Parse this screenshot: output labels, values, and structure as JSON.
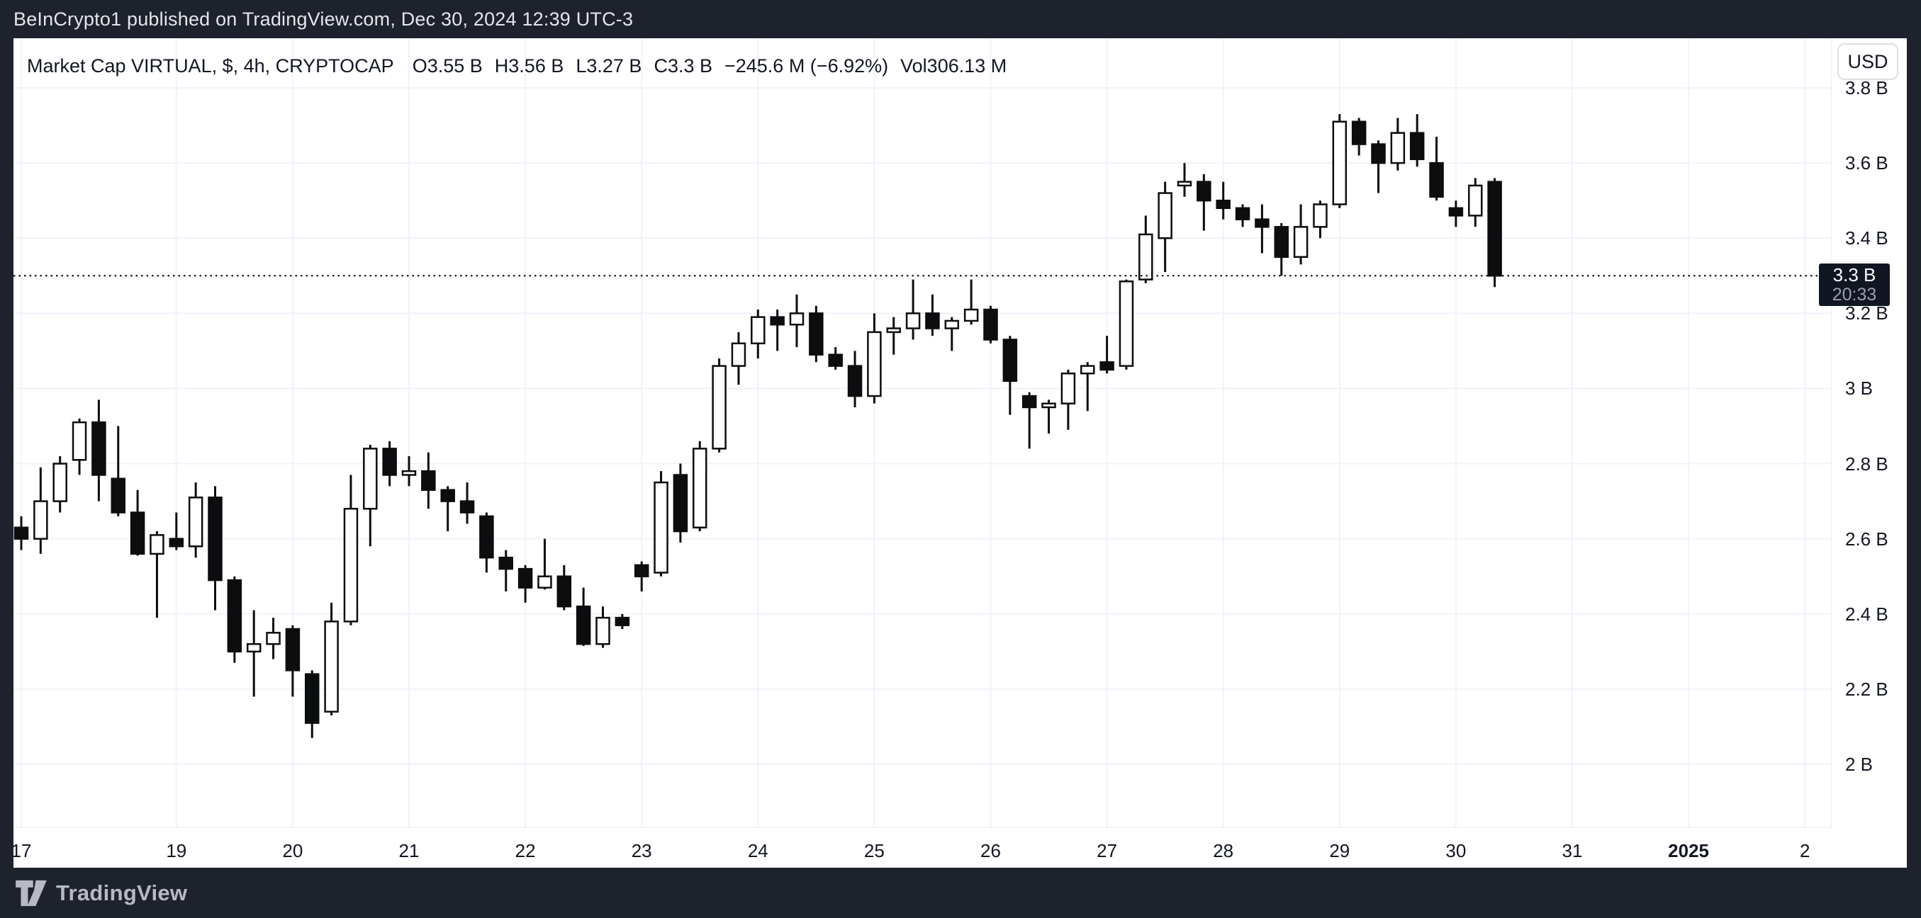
{
  "top_bar": {
    "attribution": "BeInCrypto1 published on TradingView.com, Dec 30, 2024 12:39 UTC-3"
  },
  "legend": {
    "title": "Market Cap VIRTUAL, $, 4h, CRYPTOCAP",
    "open_label": "O",
    "open": "3.55 B",
    "high_label": "H",
    "high": "3.56 B",
    "low_label": "L",
    "low": "3.27 B",
    "close_label": "C",
    "close": "3.3 B",
    "change": "−245.6 M (−6.92%)",
    "volume_label": "Vol",
    "volume": "306.13 M"
  },
  "currency_button": {
    "label": "USD"
  },
  "price_badge": {
    "price": "3.3 B",
    "countdown": "20:33"
  },
  "footer": {
    "logo_text": "TradingView"
  },
  "colors": {
    "frame": "#1e222d",
    "chart_bg": "#ffffff",
    "grid": "#f0f3fa",
    "candle_up_fill": "#ffffff",
    "candle_down_fill": "#0c0d0f",
    "candle_stroke": "#0c0d0f",
    "text_dark": "#131722",
    "badge_bg": "#111722",
    "badge_countdown": "#9aa0ab",
    "frame_text": "#e4e6ea",
    "logo_gray": "#b7bac2"
  },
  "chart_data": {
    "type": "candlestick",
    "title": "Market Cap VIRTUAL, $, 4h, CRYPTOCAP",
    "unit": "USD billions",
    "timeframe": "4h",
    "grid": true,
    "price_line": {
      "value": 3.3,
      "label": "3.3 B",
      "countdown": "20:33"
    },
    "y_axis": {
      "side": "right",
      "ticks": [
        {
          "label": "3.8 B",
          "value": 3.8
        },
        {
          "label": "3.6 B",
          "value": 3.6
        },
        {
          "label": "3.4 B",
          "value": 3.4
        },
        {
          "label": "3.2 B",
          "value": 3.2
        },
        {
          "label": "3 B",
          "value": 3.0
        },
        {
          "label": "2.8 B",
          "value": 2.8
        },
        {
          "label": "2.6 B",
          "value": 2.6
        },
        {
          "label": "2.4 B",
          "value": 2.4
        },
        {
          "label": "2.2 B",
          "value": 2.2
        },
        {
          "label": "2 B",
          "value": 2.0
        }
      ]
    },
    "x_axis": {
      "labels": [
        {
          "text": "17",
          "candle_index": 0,
          "bold": false
        },
        {
          "text": "19",
          "candle_index": 8,
          "bold": false
        },
        {
          "text": "20",
          "candle_index": 14,
          "bold": false
        },
        {
          "text": "21",
          "candle_index": 20,
          "bold": false
        },
        {
          "text": "22",
          "candle_index": 26,
          "bold": false
        },
        {
          "text": "23",
          "candle_index": 32,
          "bold": false
        },
        {
          "text": "24",
          "candle_index": 38,
          "bold": false
        },
        {
          "text": "25",
          "candle_index": 44,
          "bold": false
        },
        {
          "text": "26",
          "candle_index": 50,
          "bold": false
        },
        {
          "text": "27",
          "candle_index": 56,
          "bold": false
        },
        {
          "text": "28",
          "candle_index": 62,
          "bold": false
        },
        {
          "text": "29",
          "candle_index": 68,
          "bold": false
        },
        {
          "text": "30",
          "candle_index": 74,
          "bold": false
        },
        {
          "text": "31",
          "candle_index": 80,
          "bold": false
        },
        {
          "text": "2025",
          "candle_index": 86,
          "bold": true
        },
        {
          "text": "2",
          "candle_index": 92,
          "bold": false
        }
      ]
    },
    "candles_format": [
      "open",
      "high",
      "low",
      "close"
    ],
    "candles": [
      [
        2.63,
        2.66,
        2.57,
        2.6
      ],
      [
        2.6,
        2.79,
        2.56,
        2.7
      ],
      [
        2.7,
        2.82,
        2.67,
        2.8
      ],
      [
        2.81,
        2.92,
        2.77,
        2.91
      ],
      [
        2.91,
        2.97,
        2.7,
        2.77
      ],
      [
        2.76,
        2.9,
        2.66,
        2.67
      ],
      [
        2.67,
        2.73,
        2.555,
        2.56
      ],
      [
        2.56,
        2.62,
        2.39,
        2.61
      ],
      [
        2.6,
        2.67,
        2.57,
        2.58
      ],
      [
        2.58,
        2.75,
        2.55,
        2.71
      ],
      [
        2.71,
        2.74,
        2.41,
        2.49
      ],
      [
        2.49,
        2.5,
        2.27,
        2.3
      ],
      [
        2.3,
        2.41,
        2.18,
        2.32
      ],
      [
        2.32,
        2.39,
        2.28,
        2.35
      ],
      [
        2.36,
        2.37,
        2.18,
        2.25
      ],
      [
        2.24,
        2.25,
        2.07,
        2.11
      ],
      [
        2.14,
        2.43,
        2.13,
        2.38
      ],
      [
        2.38,
        2.77,
        2.37,
        2.68
      ],
      [
        2.68,
        2.85,
        2.58,
        2.84
      ],
      [
        2.84,
        2.86,
        2.74,
        2.77
      ],
      [
        2.77,
        2.82,
        2.74,
        2.78
      ],
      [
        2.78,
        2.83,
        2.68,
        2.73
      ],
      [
        2.73,
        2.74,
        2.62,
        2.7
      ],
      [
        2.7,
        2.75,
        2.64,
        2.67
      ],
      [
        2.66,
        2.67,
        2.51,
        2.55
      ],
      [
        2.55,
        2.57,
        2.46,
        2.52
      ],
      [
        2.52,
        2.53,
        2.43,
        2.47
      ],
      [
        2.47,
        2.6,
        2.465,
        2.5
      ],
      [
        2.5,
        2.53,
        2.41,
        2.42
      ],
      [
        2.42,
        2.47,
        2.315,
        2.32
      ],
      [
        2.32,
        2.42,
        2.31,
        2.39
      ],
      [
        2.39,
        2.4,
        2.36,
        2.37
      ],
      [
        2.53,
        2.54,
        2.46,
        2.5
      ],
      [
        2.51,
        2.78,
        2.5,
        2.75
      ],
      [
        2.77,
        2.8,
        2.59,
        2.62
      ],
      [
        2.63,
        2.86,
        2.62,
        2.84
      ],
      [
        2.84,
        3.08,
        2.83,
        3.06
      ],
      [
        3.06,
        3.15,
        3.01,
        3.12
      ],
      [
        3.12,
        3.21,
        3.08,
        3.19
      ],
      [
        3.19,
        3.21,
        3.1,
        3.17
      ],
      [
        3.17,
        3.25,
        3.11,
        3.2
      ],
      [
        3.2,
        3.22,
        3.07,
        3.09
      ],
      [
        3.09,
        3.11,
        3.05,
        3.06
      ],
      [
        3.06,
        3.1,
        2.95,
        2.98
      ],
      [
        2.98,
        3.2,
        2.96,
        3.15
      ],
      [
        3.15,
        3.19,
        3.09,
        3.16
      ],
      [
        3.16,
        3.29,
        3.13,
        3.2
      ],
      [
        3.2,
        3.25,
        3.14,
        3.16
      ],
      [
        3.16,
        3.19,
        3.1,
        3.18
      ],
      [
        3.18,
        3.29,
        3.17,
        3.21
      ],
      [
        3.21,
        3.22,
        3.12,
        3.13
      ],
      [
        3.13,
        3.14,
        2.93,
        3.02
      ],
      [
        2.98,
        2.99,
        2.84,
        2.95
      ],
      [
        2.95,
        2.97,
        2.88,
        2.96
      ],
      [
        2.96,
        3.05,
        2.89,
        3.04
      ],
      [
        3.04,
        3.07,
        2.94,
        3.06
      ],
      [
        3.07,
        3.14,
        3.04,
        3.05
      ],
      [
        3.06,
        3.29,
        3.05,
        3.285
      ],
      [
        3.29,
        3.46,
        3.28,
        3.41
      ],
      [
        3.4,
        3.55,
        3.31,
        3.52
      ],
      [
        3.54,
        3.6,
        3.51,
        3.55
      ],
      [
        3.55,
        3.57,
        3.42,
        3.5
      ],
      [
        3.5,
        3.55,
        3.45,
        3.48
      ],
      [
        3.48,
        3.49,
        3.43,
        3.45
      ],
      [
        3.45,
        3.49,
        3.36,
        3.43
      ],
      [
        3.43,
        3.44,
        3.3,
        3.35
      ],
      [
        3.35,
        3.49,
        3.33,
        3.43
      ],
      [
        3.43,
        3.5,
        3.4,
        3.49
      ],
      [
        3.49,
        3.73,
        3.48,
        3.71
      ],
      [
        3.71,
        3.72,
        3.62,
        3.65
      ],
      [
        3.65,
        3.66,
        3.52,
        3.6
      ],
      [
        3.6,
        3.72,
        3.58,
        3.68
      ],
      [
        3.68,
        3.73,
        3.59,
        3.61
      ],
      [
        3.6,
        3.67,
        3.5,
        3.51
      ],
      [
        3.48,
        3.5,
        3.43,
        3.46
      ],
      [
        3.46,
        3.56,
        3.43,
        3.54
      ],
      [
        3.55,
        3.56,
        3.27,
        3.3
      ]
    ]
  }
}
